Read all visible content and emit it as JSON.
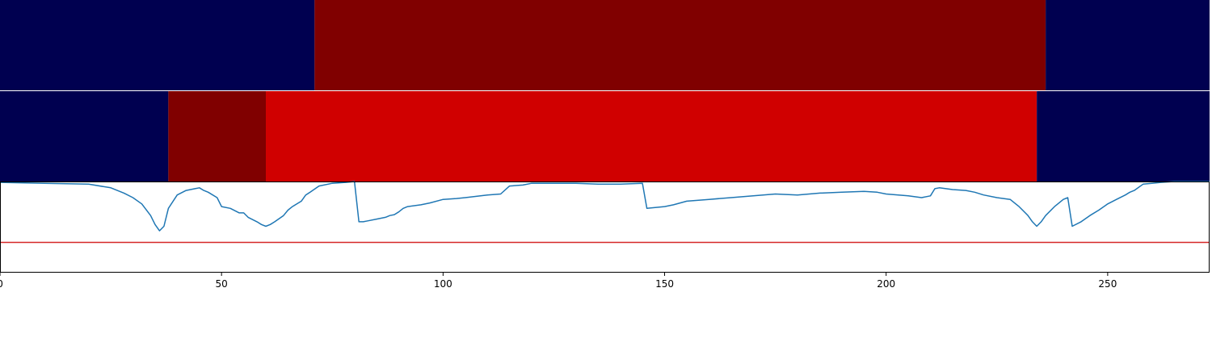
{
  "colors": {
    "dark_navy": "#000050",
    "dark_red": "#800000",
    "bright_red": "#d00000",
    "line": "#1f77b4",
    "threshold": "#d62728"
  },
  "chart_data": {
    "type": "line",
    "description_panels": [
      "segment-strip",
      "segment-strip",
      "line"
    ],
    "xlim": [
      0,
      273
    ],
    "x_ticks": [
      0,
      50,
      100,
      150,
      200,
      250
    ],
    "x_tick_labels": [
      "0",
      "50",
      "100",
      "150",
      "200",
      "250"
    ],
    "strip_top": {
      "segments": [
        {
          "start": 0,
          "end": 71,
          "color": "#000050"
        },
        {
          "start": 71,
          "end": 236,
          "color": "#800000"
        },
        {
          "start": 236,
          "end": 273,
          "color": "#000050"
        }
      ]
    },
    "strip_middle": {
      "segments": [
        {
          "start": 0,
          "end": 38,
          "color": "#000050"
        },
        {
          "start": 38,
          "end": 60,
          "color": "#800000"
        },
        {
          "start": 60,
          "end": 234,
          "color": "#d00000"
        },
        {
          "start": 234,
          "end": 273,
          "color": "#000050"
        }
      ]
    },
    "line_panel": {
      "ylim": [
        0,
        1
      ],
      "threshold": 0.32,
      "series": [
        {
          "x": [
            0,
            10,
            20,
            25,
            28,
            30,
            32,
            34,
            35,
            36,
            37,
            38,
            40,
            42,
            44,
            45,
            46,
            47,
            49,
            50,
            52,
            54,
            55,
            56,
            58,
            59,
            60,
            61,
            62,
            64,
            65,
            66,
            68,
            69,
            70,
            72,
            75,
            78,
            80,
            81,
            82,
            83,
            85,
            87,
            88,
            89,
            90,
            91,
            92,
            95,
            97,
            100,
            103,
            105,
            110,
            113,
            115,
            118,
            120,
            125,
            130,
            135,
            140,
            145,
            146,
            150,
            152,
            155,
            160,
            165,
            170,
            175,
            180,
            185,
            190,
            195,
            198,
            200,
            205,
            208,
            210,
            211,
            212,
            215,
            218,
            220,
            222,
            225,
            228,
            230,
            232,
            233,
            234,
            235,
            236,
            238,
            240,
            241,
            242,
            244,
            246,
            248,
            250,
            252,
            254,
            255,
            256,
            258,
            260,
            262,
            265,
            270,
            273
          ],
          "y": [
            0.99,
            0.98,
            0.97,
            0.93,
            0.87,
            0.82,
            0.75,
            0.62,
            0.52,
            0.45,
            0.5,
            0.7,
            0.85,
            0.9,
            0.92,
            0.93,
            0.9,
            0.88,
            0.82,
            0.72,
            0.7,
            0.65,
            0.65,
            0.6,
            0.55,
            0.52,
            0.5,
            0.52,
            0.55,
            0.62,
            0.68,
            0.72,
            0.78,
            0.85,
            0.88,
            0.95,
            0.98,
            0.99,
            1.0,
            0.55,
            0.55,
            0.56,
            0.58,
            0.6,
            0.62,
            0.63,
            0.66,
            0.7,
            0.72,
            0.74,
            0.76,
            0.8,
            0.81,
            0.82,
            0.85,
            0.86,
            0.95,
            0.96,
            0.98,
            0.98,
            0.98,
            0.97,
            0.97,
            0.98,
            0.7,
            0.72,
            0.74,
            0.78,
            0.8,
            0.82,
            0.84,
            0.86,
            0.85,
            0.87,
            0.88,
            0.89,
            0.88,
            0.86,
            0.84,
            0.82,
            0.84,
            0.92,
            0.93,
            0.91,
            0.9,
            0.88,
            0.85,
            0.82,
            0.8,
            0.72,
            0.62,
            0.55,
            0.5,
            0.55,
            0.62,
            0.72,
            0.8,
            0.82,
            0.5,
            0.55,
            0.62,
            0.68,
            0.75,
            0.8,
            0.85,
            0.88,
            0.9,
            0.97,
            0.98,
            0.99,
            1.0,
            1.0,
            1.0
          ]
        }
      ]
    }
  }
}
